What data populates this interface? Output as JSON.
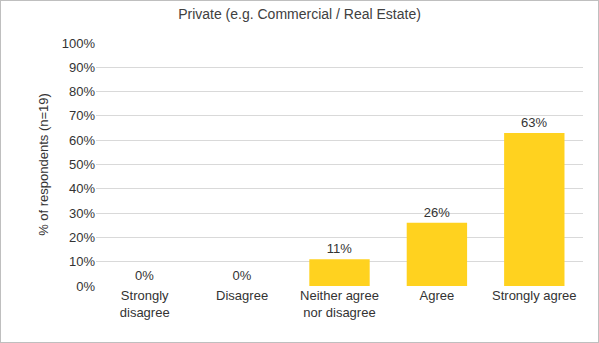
{
  "chart_data": {
    "type": "bar",
    "title": "Private (e.g. Commercial / Real Estate)",
    "y_label": "% of respondents (n=19)",
    "categories": [
      "Strongly disagree",
      "Disagree",
      "Neither agree nor disagree",
      "Agree",
      "Strongly agree"
    ],
    "values": [
      0,
      0,
      11,
      26,
      63
    ],
    "value_labels": [
      "0%",
      "0%",
      "11%",
      "26%",
      "63%"
    ],
    "color": "#ffd21f",
    "ylim": [
      0,
      100
    ],
    "yticks": [
      {
        "value": 0,
        "label": "0%"
      },
      {
        "value": 10,
        "label": "10%"
      },
      {
        "value": 20,
        "label": "20%"
      },
      {
        "value": 30,
        "label": "30%"
      },
      {
        "value": 40,
        "label": "40%"
      },
      {
        "value": 50,
        "label": "50%"
      },
      {
        "value": 60,
        "label": "60%"
      },
      {
        "value": 70,
        "label": "70%"
      },
      {
        "value": 80,
        "label": "80%"
      },
      {
        "value": 90,
        "label": "90%"
      },
      {
        "value": 100,
        "label": "100%"
      }
    ],
    "grid": true,
    "data_labels": true
  }
}
